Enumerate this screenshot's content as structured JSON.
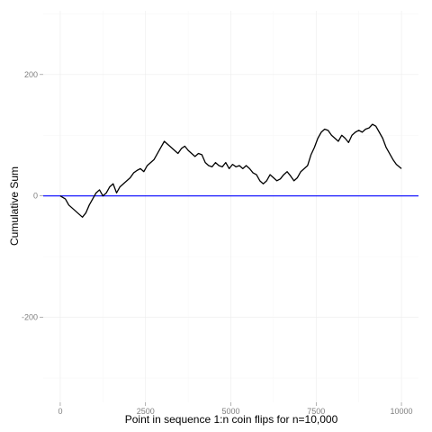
{
  "chart_data": {
    "type": "line",
    "title": "",
    "xlabel": "Point in sequence 1:n coin flips for n=10,000",
    "ylabel": "Cumulative Sum",
    "xlim": [
      -500,
      10500
    ],
    "ylim": [
      -340,
      305
    ],
    "x_ticks": [
      0,
      2500,
      5000,
      7500,
      10000
    ],
    "x_tick_labels": [
      "0",
      "2500",
      "5000",
      "7500",
      "10000"
    ],
    "y_ticks": [
      -200,
      0,
      200
    ],
    "y_tick_labels": [
      "-200",
      "0",
      "200"
    ],
    "grid": true,
    "legend": "none",
    "reference_line": {
      "y": 0,
      "color": "#0000ff"
    },
    "series": [
      {
        "color": "#000000",
        "x": [
          0,
          150,
          250,
          350,
          450,
          550,
          650,
          750,
          850,
          950,
          1050,
          1150,
          1250,
          1350,
          1450,
          1550,
          1650,
          1750,
          1850,
          1950,
          2050,
          2150,
          2250,
          2350,
          2450,
          2550,
          2650,
          2750,
          2850,
          2950,
          3050,
          3150,
          3250,
          3350,
          3450,
          3550,
          3650,
          3750,
          3850,
          3950,
          4050,
          4150,
          4250,
          4350,
          4450,
          4550,
          4650,
          4750,
          4850,
          4950,
          5050,
          5150,
          5250,
          5350,
          5450,
          5550,
          5650,
          5750,
          5850,
          5950,
          6050,
          6150,
          6250,
          6350,
          6450,
          6550,
          6650,
          6750,
          6850,
          6950,
          7050,
          7150,
          7250,
          7350,
          7450,
          7550,
          7650,
          7750,
          7850,
          7950,
          8050,
          8150,
          8250,
          8350,
          8450,
          8550,
          8650,
          8750,
          8850,
          8950,
          9050,
          9150,
          9250,
          9350,
          9450,
          9550,
          9650,
          9750,
          9850,
          10000
        ],
        "values": [
          0,
          -5,
          -15,
          -20,
          -25,
          -30,
          -35,
          -28,
          -15,
          -5,
          5,
          10,
          0,
          5,
          15,
          20,
          5,
          15,
          20,
          25,
          30,
          38,
          42,
          45,
          40,
          50,
          55,
          60,
          70,
          80,
          90,
          85,
          80,
          75,
          70,
          78,
          82,
          75,
          70,
          65,
          70,
          68,
          55,
          50,
          48,
          55,
          50,
          48,
          55,
          45,
          52,
          48,
          50,
          45,
          50,
          45,
          38,
          35,
          25,
          20,
          25,
          35,
          30,
          25,
          28,
          35,
          40,
          33,
          25,
          30,
          40,
          45,
          50,
          68,
          80,
          95,
          105,
          110,
          108,
          100,
          95,
          90,
          100,
          95,
          88,
          100,
          105,
          108,
          105,
          110,
          112,
          118,
          115,
          105,
          95,
          80,
          70,
          60,
          52,
          45
        ]
      }
    ]
  }
}
